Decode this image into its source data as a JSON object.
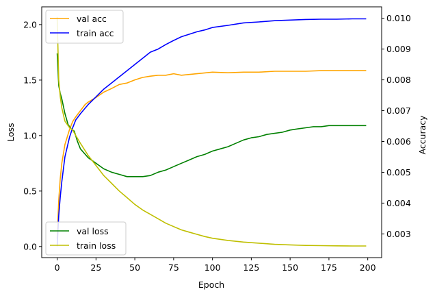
{
  "chart_data": {
    "type": "line",
    "xlabel": "Epoch",
    "ylabel_left": "Loss",
    "ylabel_right": "Accuracy",
    "ylabel_left_color": "#008000",
    "ylabel_right_color": "#0000ff",
    "xlim": [
      -9.95,
      208.95
    ],
    "ylim_left": [
      -0.1,
      2.16
    ],
    "ylim_right": [
      0.00223,
      0.01037
    ],
    "x_ticks": [
      0,
      25,
      50,
      75,
      100,
      125,
      150,
      175,
      200
    ],
    "left_ticks": [
      0.0,
      0.5,
      1.0,
      1.5,
      2.0
    ],
    "right_ticks": [
      0.003,
      0.004,
      0.005,
      0.006,
      0.007,
      0.008,
      0.009,
      0.01
    ],
    "legend_top_left": [
      "val acc",
      "train acc"
    ],
    "legend_bottom_left": [
      "val loss",
      "train loss"
    ],
    "series": [
      {
        "name": "val acc",
        "axis": "right",
        "color": "#ffa500",
        "x": [
          0,
          1,
          2,
          3,
          5,
          8,
          10,
          12,
          15,
          18,
          20,
          25,
          30,
          35,
          40,
          45,
          50,
          55,
          60,
          65,
          70,
          75,
          80,
          90,
          100,
          110,
          120,
          130,
          140,
          150,
          160,
          170,
          180,
          190,
          199
        ],
        "y": [
          0.00285,
          0.0041,
          0.0048,
          0.0053,
          0.0059,
          0.0064,
          0.00665,
          0.0068,
          0.007,
          0.0072,
          0.00728,
          0.00743,
          0.0076,
          0.00772,
          0.00785,
          0.0079,
          0.008,
          0.00808,
          0.00812,
          0.00815,
          0.00815,
          0.0082,
          0.00815,
          0.0082,
          0.00825,
          0.00823,
          0.00825,
          0.00825,
          0.00828,
          0.00828,
          0.00828,
          0.0083,
          0.0083,
          0.0083,
          0.0083
        ]
      },
      {
        "name": "train acc",
        "axis": "right",
        "color": "#0000ff",
        "x": [
          0,
          1,
          2,
          3,
          5,
          8,
          10,
          12,
          15,
          20,
          25,
          30,
          35,
          40,
          45,
          50,
          55,
          60,
          65,
          70,
          75,
          80,
          85,
          90,
          95,
          100,
          110,
          120,
          130,
          140,
          150,
          160,
          170,
          180,
          190,
          199
        ],
        "y": [
          0.0026,
          0.0036,
          0.0042,
          0.0047,
          0.0055,
          0.00615,
          0.00645,
          0.0067,
          0.0069,
          0.0072,
          0.00745,
          0.0077,
          0.0079,
          0.0081,
          0.0083,
          0.0085,
          0.0087,
          0.0089,
          0.009,
          0.00915,
          0.00928,
          0.0094,
          0.00948,
          0.00956,
          0.00962,
          0.0097,
          0.00977,
          0.00985,
          0.00988,
          0.00992,
          0.00994,
          0.00996,
          0.00997,
          0.00997,
          0.00998,
          0.00998
        ]
      },
      {
        "name": "val loss",
        "axis": "left",
        "color": "#008000",
        "x": [
          0,
          1,
          2,
          3,
          5,
          7,
          9,
          11,
          13,
          15,
          20,
          25,
          30,
          35,
          40,
          45,
          50,
          55,
          60,
          65,
          70,
          75,
          80,
          85,
          90,
          95,
          100,
          105,
          110,
          115,
          120,
          125,
          130,
          135,
          140,
          145,
          150,
          155,
          160,
          165,
          170,
          175,
          180,
          185,
          190,
          195,
          199
        ],
        "y": [
          1.74,
          1.45,
          1.38,
          1.33,
          1.2,
          1.1,
          1.06,
          1.04,
          0.95,
          0.88,
          0.8,
          0.75,
          0.7,
          0.67,
          0.65,
          0.63,
          0.63,
          0.63,
          0.64,
          0.67,
          0.69,
          0.72,
          0.75,
          0.78,
          0.81,
          0.83,
          0.86,
          0.88,
          0.9,
          0.93,
          0.96,
          0.98,
          0.99,
          1.01,
          1.02,
          1.03,
          1.05,
          1.06,
          1.07,
          1.08,
          1.08,
          1.09,
          1.09,
          1.09,
          1.09,
          1.09,
          1.09
        ]
      },
      {
        "name": "train loss",
        "axis": "left",
        "color": "#bfbf00",
        "x": [
          0,
          1,
          2,
          3,
          5,
          8,
          10,
          12,
          15,
          20,
          25,
          30,
          35,
          40,
          45,
          50,
          55,
          60,
          65,
          70,
          75,
          80,
          85,
          90,
          95,
          100,
          110,
          120,
          130,
          140,
          150,
          160,
          170,
          180,
          190,
          199
        ],
        "y": [
          2.07,
          1.5,
          1.35,
          1.25,
          1.13,
          1.07,
          1.05,
          1.0,
          0.93,
          0.82,
          0.73,
          0.64,
          0.57,
          0.5,
          0.44,
          0.38,
          0.33,
          0.29,
          0.25,
          0.21,
          0.18,
          0.15,
          0.13,
          0.11,
          0.09,
          0.075,
          0.055,
          0.04,
          0.03,
          0.02,
          0.015,
          0.01,
          0.008,
          0.006,
          0.005,
          0.005
        ]
      }
    ]
  }
}
